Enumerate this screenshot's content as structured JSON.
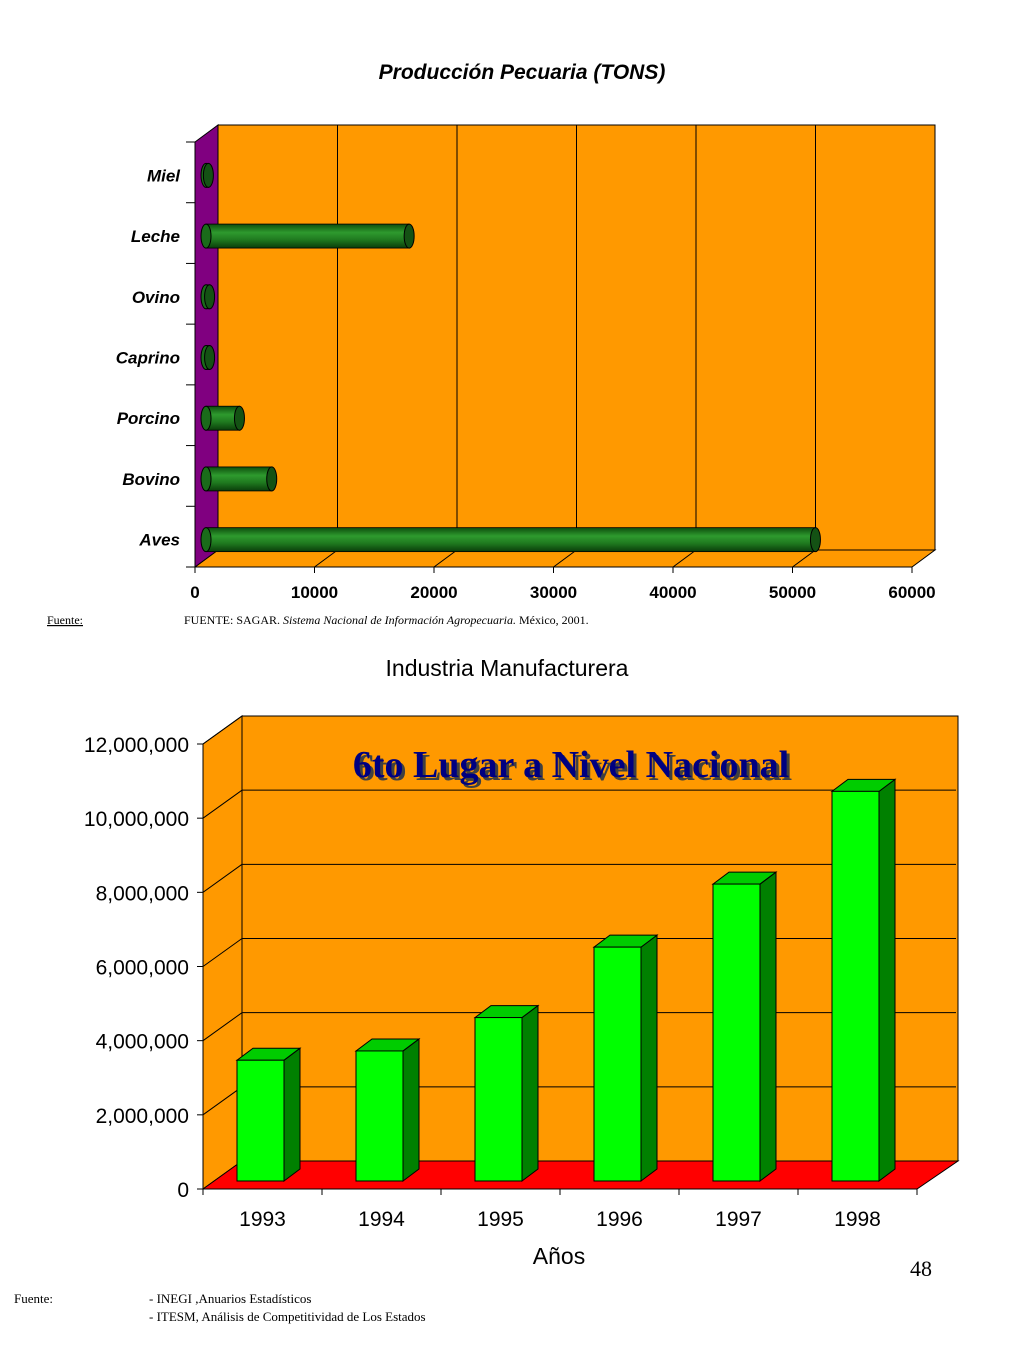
{
  "page_number": "48",
  "chart_data": [
    {
      "type": "bar",
      "orientation": "horizontal",
      "title": "Producción Pecuaria (TONS)",
      "categories": [
        "Miel",
        "Leche",
        "Ovino",
        "Caprino",
        "Porcino",
        "Bovino",
        "Aves"
      ],
      "values": [
        200,
        17000,
        300,
        300,
        2800,
        5500,
        51000
      ],
      "xlim": [
        0,
        60000
      ],
      "x_ticks": [
        "0",
        "10000",
        "20000",
        "30000",
        "40000",
        "50000",
        "60000"
      ],
      "grid": true,
      "colors": {
        "plot_bg": "#ff9900",
        "side_wall": "#800080",
        "bar": "#1f7a1f"
      },
      "source_label": "Fuente:",
      "source_text": {
        "prefix": "FUENTE: SAGAR. ",
        "italic": "Sistema Nacional de Información Agropecuaria.",
        "suffix": " México, 2001."
      }
    },
    {
      "type": "bar",
      "title": "Industria Manufacturera",
      "annotation": "6to Lugar a Nivel Nacional",
      "categories": [
        "1993",
        "1994",
        "1995",
        "1996",
        "1997",
        "1998"
      ],
      "values": [
        3500000,
        3750000,
        4650000,
        6550000,
        8250000,
        10750000
      ],
      "xlabel": "Años",
      "ylim": [
        0,
        12000000
      ],
      "y_ticks": [
        "0",
        "2,000,000",
        "4,000,000",
        "6,000,000",
        "8,000,000",
        "10,000,000",
        "12,000,000"
      ],
      "grid": true,
      "colors": {
        "plot_bg": "#ff9900",
        "floor": "#ff0000",
        "bar_front": "#00ff00",
        "bar_side": "#008000",
        "bar_top": "#00cc00"
      },
      "source_label": "Fuente:",
      "source_lines": [
        "- INEGI ,Anuarios Estadísticos",
        "- ITESM, Análisis de Competitividad de Los Estados"
      ]
    }
  ]
}
